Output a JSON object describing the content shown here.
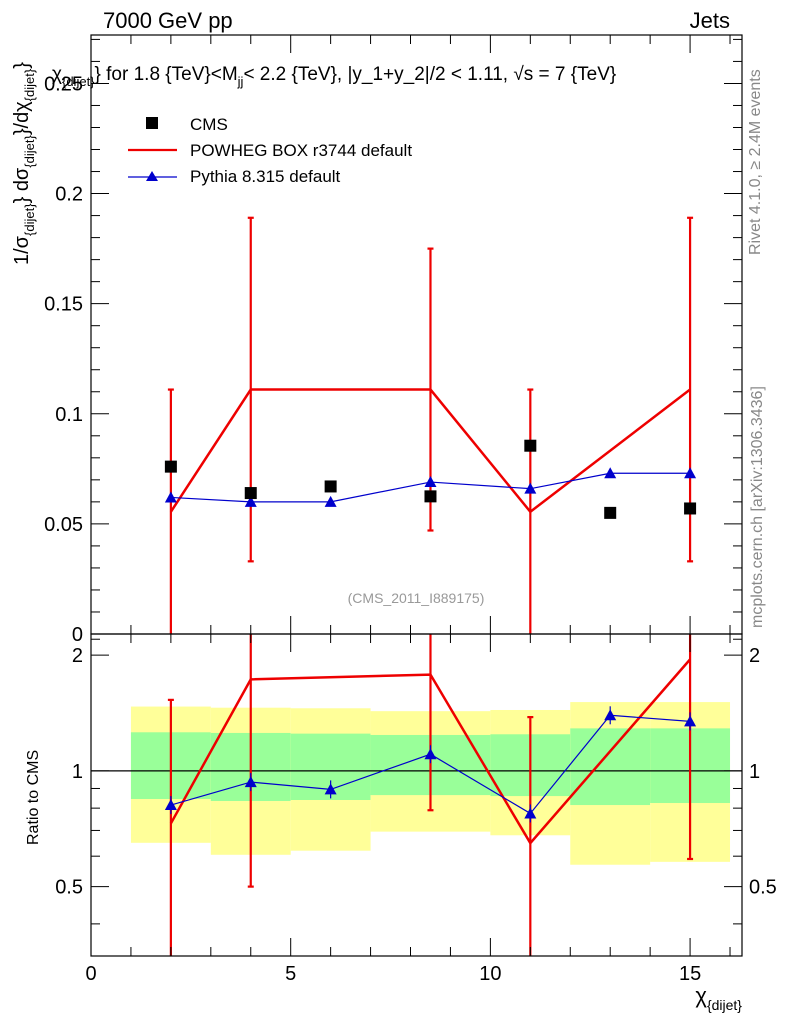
{
  "header": {
    "left": "7000 GeV pp",
    "right": "Jets"
  },
  "side_labels": {
    "rivet": "Rivet 4.1.0, ≥ 2.4M events",
    "mcplots": "mcplots.cern.ch [arXiv:1306.3436]"
  },
  "chart_data": [
    {
      "type": "scatter",
      "panel": "main",
      "title": "χ_{dijet} for 1.8 {TeV}<M_jj< 2.2 {TeV}, |y_1+y_2|/2 < 1.11, √s = 7 {TeV}",
      "title_parts": {
        "chi": "χ",
        "chi_sub": "{dijet}",
        "mid": "} for 1.8 {TeV}<M",
        "m_sub": "jj",
        "tail": "< 2.2 {TeV}, |y_1+y_2|/2 < 1.11, √s = 7 {TeV}"
      },
      "ylabel_parts": {
        "a": "1/σ",
        "a_sub": "{dijet}",
        "b": "} dσ",
        "b_sub": "{dijet}",
        "c": "}/dχ",
        "c_sub": "{dijet}",
        "d": "}"
      },
      "xlim": [
        0,
        16.3
      ],
      "ylim": [
        0,
        0.272
      ],
      "yticks": [
        0,
        0.05,
        0.1,
        0.15,
        0.2,
        0.25
      ],
      "ytick_labels": [
        "0",
        "0.05",
        "0.1",
        "0.15",
        "0.2",
        "0.25"
      ],
      "watermark": "(CMS_2011_I889175)",
      "legend": [
        "CMS",
        "POWHEG BOX r3744 default",
        "Pythia 8.315 default"
      ],
      "series": [
        {
          "name": "CMS",
          "style": "square-markers",
          "color": "#000000",
          "x": [
            2,
            4,
            6,
            8.5,
            11,
            13,
            15
          ],
          "y": [
            0.076,
            0.064,
            0.067,
            0.0625,
            0.0855,
            0.055,
            0.057
          ]
        },
        {
          "name": "POWHEG BOX r3744 default",
          "style": "line-with-errorbars",
          "color": "#ee0000",
          "x": [
            2,
            4,
            8.5,
            11,
            15
          ],
          "y": [
            0.0555,
            0.111,
            0.111,
            0.0555,
            0.111
          ],
          "yerr_low": [
            0,
            0.033,
            0.047,
            0,
            0.033
          ],
          "yerr_high": [
            0.111,
            0.189,
            0.175,
            0.111,
            0.189
          ]
        },
        {
          "name": "Pythia 8.315 default",
          "style": "line-with-triangles",
          "color": "#0000cc",
          "x": [
            2,
            4,
            6,
            8.5,
            11,
            13,
            15
          ],
          "y": [
            0.062,
            0.06,
            0.06,
            0.069,
            0.066,
            0.073,
            0.073
          ]
        }
      ]
    },
    {
      "type": "line",
      "panel": "ratio",
      "ylabel": "Ratio to CMS",
      "xlabel_parts": {
        "chi": "χ",
        "chi_sub": "{dijet}"
      },
      "xlim": [
        0,
        16.3
      ],
      "ylim": [
        0.33,
        2.27
      ],
      "xticks": [
        0,
        5,
        10,
        15
      ],
      "xtick_labels": [
        "0",
        "5",
        "10",
        "15"
      ],
      "yticks": [
        0.5,
        1,
        2
      ],
      "ytick_labels": [
        "0.5",
        "1",
        "2"
      ],
      "bands": {
        "colors": {
          "outer": "#ffff99",
          "inner": "#99ff99"
        },
        "bins": [
          {
            "x0": 1,
            "x1": 3,
            "outer": [
              0.65,
              1.47
            ],
            "inner": [
              0.845,
              1.26
            ]
          },
          {
            "x0": 3,
            "x1": 5,
            "outer": [
              0.605,
              1.46
            ],
            "inner": [
              0.835,
              1.255
            ]
          },
          {
            "x0": 5,
            "x1": 7,
            "outer": [
              0.62,
              1.455
            ],
            "inner": [
              0.84,
              1.25
            ]
          },
          {
            "x0": 7,
            "x1": 10,
            "outer": [
              0.695,
              1.43
            ],
            "inner": [
              0.865,
              1.24
            ]
          },
          {
            "x0": 10,
            "x1": 12,
            "outer": [
              0.68,
              1.44
            ],
            "inner": [
              0.86,
              1.245
            ]
          },
          {
            "x0": 12,
            "x1": 14,
            "outer": [
              0.57,
              1.51
            ],
            "inner": [
              0.815,
              1.29
            ]
          },
          {
            "x0": 14,
            "x1": 16,
            "outer": [
              0.58,
              1.51
            ],
            "inner": [
              0.825,
              1.29
            ]
          }
        ]
      },
      "series": [
        {
          "name": "POWHEG BOX r3744 default",
          "color": "#ee0000",
          "x": [
            2,
            4,
            8.5,
            11,
            15
          ],
          "y": [
            0.73,
            1.73,
            1.78,
            0.649,
            1.95
          ],
          "yerr_low": [
            0.33,
            0.5,
            0.79,
            0.33,
            0.59
          ],
          "yerr_high": [
            1.53,
            2.27,
            2.27,
            1.38,
            2.27
          ]
        },
        {
          "name": "Pythia 8.315 default",
          "color": "#0000cc",
          "x": [
            2,
            4,
            6,
            8.5,
            11,
            13,
            15
          ],
          "y": [
            0.815,
            0.935,
            0.895,
            1.105,
            0.775,
            1.395,
            1.345
          ]
        }
      ]
    }
  ]
}
